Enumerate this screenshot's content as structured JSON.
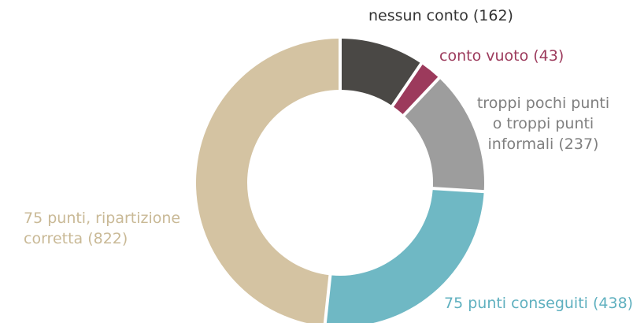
{
  "chart_data": {
    "type": "pie",
    "variant": "donut",
    "segments": [
      {
        "label_lines": [
          "nessun conto (162)"
        ],
        "value": 162,
        "color": "#4a4845"
      },
      {
        "label_lines": [
          "conto vuoto (43)"
        ],
        "value": 43,
        "color": "#9c3a5c"
      },
      {
        "label_lines": [
          "troppi pochi punti",
          "o troppi punti",
          "informali (237)"
        ],
        "value": 237,
        "color": "#9d9d9d"
      },
      {
        "label_lines": [
          "75 punti conseguiti (438)"
        ],
        "value": 438,
        "color": "#6fb8c4"
      },
      {
        "label_lines": [
          "75 punti, ripartizione",
          "corretta (822)"
        ],
        "value": 822,
        "color": "#d4c3a2"
      }
    ]
  }
}
